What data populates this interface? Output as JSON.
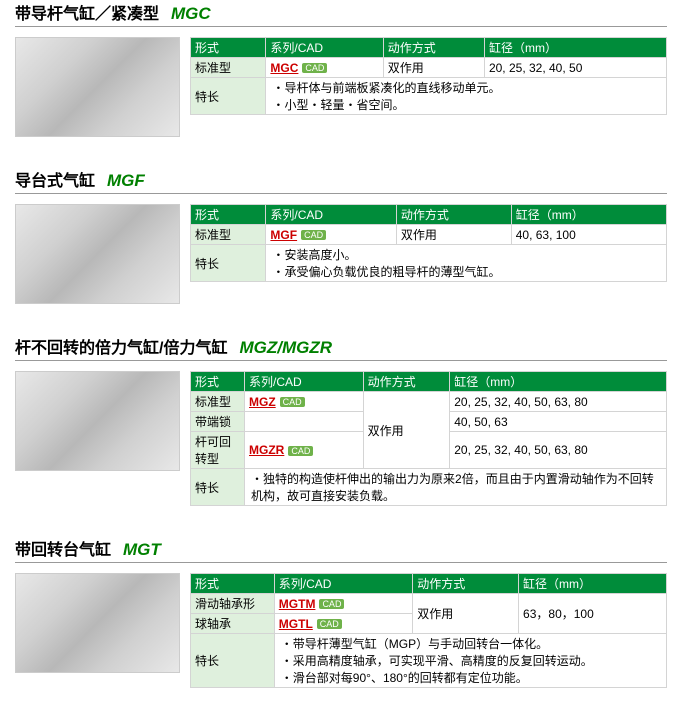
{
  "sections": [
    {
      "title_zh": "带导杆气缸／紧凑型",
      "title_code": "MGC",
      "headers": [
        "形式",
        "系列/CAD",
        "动作方式",
        "缸径（mm）"
      ],
      "rows": [
        {
          "type": "标准型",
          "series": "MGC",
          "cad": true,
          "op": "双作用",
          "bore": "20, 25, 32, 40, 50"
        }
      ],
      "feature_label": "特长",
      "features": [
        "导杆体与前端板紧凑化的直线移动单元。",
        "小型・轻量・省空间。"
      ]
    },
    {
      "title_zh": "导台式气缸",
      "title_code": "MGF",
      "headers": [
        "形式",
        "系列/CAD",
        "动作方式",
        "缸径（mm）"
      ],
      "rows": [
        {
          "type": "标准型",
          "series": "MGF",
          "cad": true,
          "op": "双作用",
          "bore": "40, 63, 100"
        }
      ],
      "feature_label": "特长",
      "features": [
        "安装高度小。",
        "承受偏心负载优良的粗导杆的薄型气缸。"
      ]
    },
    {
      "title_zh": "杆不回转的倍力气缸/倍力气缸",
      "title_code": "MGZ/MGZR",
      "headers": [
        "形式",
        "系列/CAD",
        "动作方式",
        "缸径（mm）"
      ],
      "rows": [
        {
          "type": "标准型",
          "series": "MGZ",
          "cad": true,
          "op": "双作用",
          "bore": "20, 25, 32, 40, 50, 63, 80",
          "op_rowspan": 3
        },
        {
          "type": "带端锁",
          "series": "",
          "cad": false,
          "op": "",
          "bore": "40, 50, 63"
        },
        {
          "type": "杆可回转型",
          "series": "MGZR",
          "cad": true,
          "op": "",
          "bore": "20, 25, 32, 40, 50, 63, 80"
        }
      ],
      "feature_label": "特长",
      "features": [
        "独特的构造使杆伸出的输出力为原来2倍，而且由于内置滑动轴作为不回转机构，故可直接安装负载。"
      ]
    },
    {
      "title_zh": "带回转台气缸",
      "title_code": "MGT",
      "headers": [
        "形式",
        "系列/CAD",
        "动作方式",
        "缸径（mm）"
      ],
      "rows": [
        {
          "type": "滑动轴承形",
          "series": "MGTM",
          "cad": true,
          "op": "双作用",
          "bore": "63，80，100",
          "op_rowspan": 2,
          "bore_rowspan": 2
        },
        {
          "type": "球轴承",
          "series": "MGTL",
          "cad": true,
          "op": "",
          "bore": ""
        }
      ],
      "feature_label": "特长",
      "features": [
        "带导杆薄型气缸（MGP）与手动回转台一体化。",
        "采用高精度轴承，可实现平滑、高精度的反复回转运动。",
        "滑台部对每90°、180°的回转都有定位功能。"
      ]
    }
  ]
}
